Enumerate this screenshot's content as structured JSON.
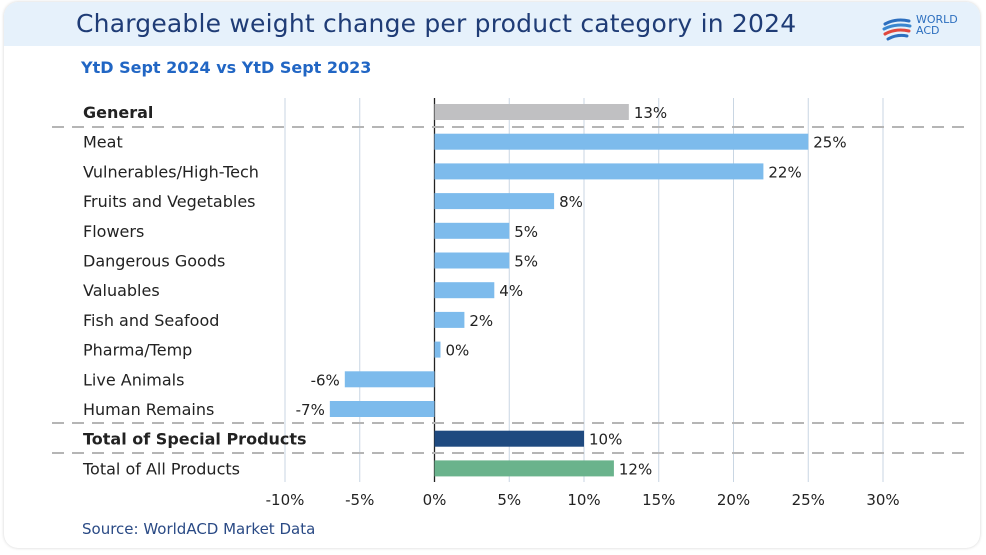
{
  "title": "Chargeable weight change per product category in 2024",
  "subtitle": "YtD Sept 2024 vs YtD Sept 2023",
  "source": "Source: WorldACD Market Data",
  "logo": {
    "line1": "WORLD",
    "line2": "ACD"
  },
  "chart_data": {
    "type": "bar",
    "orientation": "horizontal",
    "xlim": [
      -10,
      30
    ],
    "xticks": [
      "-10%",
      "-5%",
      "0%",
      "5%",
      "10%",
      "15%",
      "20%",
      "25%",
      "30%"
    ],
    "grid": true,
    "categories": [
      "General",
      "Meat",
      "Vulnerables/High-Tech",
      "Fruits and Vegetables",
      "Flowers",
      "Dangerous Goods",
      "Valuables",
      "Fish and Seafood",
      "Pharma/Temp",
      "Live Animals",
      "Human Remains",
      "Total of Special Products",
      "Total of All Products"
    ],
    "values": [
      13,
      25,
      22,
      8,
      5,
      5,
      4,
      2,
      0.4,
      -6,
      -7,
      10,
      12
    ],
    "labels": [
      "13%",
      "25%",
      "22%",
      "8%",
      "5%",
      "5%",
      "4%",
      "2%",
      "0%",
      "-6%",
      "-7%",
      "10%",
      "12%"
    ],
    "colors": [
      "#c0c0c2",
      "#7dbbec",
      "#7dbbec",
      "#7dbbec",
      "#7dbbec",
      "#7dbbec",
      "#7dbbec",
      "#7dbbec",
      "#7dbbec",
      "#7dbbec",
      "#7dbbec",
      "#1f4a80",
      "#6ab38c"
    ],
    "bold": [
      true,
      false,
      false,
      false,
      false,
      false,
      false,
      false,
      false,
      false,
      false,
      true,
      false
    ]
  }
}
